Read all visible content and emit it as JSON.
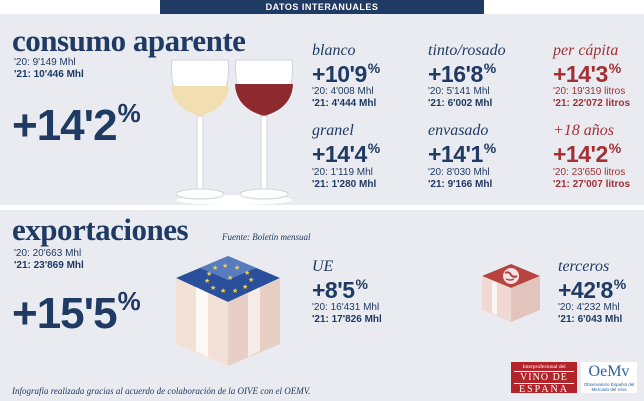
{
  "header": {
    "title": "DATOS INTERANUALES"
  },
  "consumo": {
    "title": "consumo aparente",
    "prev": "'20: 9'149 Mhl",
    "curr": "'21: 10'446 Mhl",
    "pct_main": "+14'2",
    "pct_sup": "%",
    "items": [
      {
        "label": "blanco",
        "pct": "+10'9",
        "sup": "%",
        "prev": "'20: 4'008 Mhl",
        "curr": "'21: 4'444 Mhl"
      },
      {
        "label": "tinto/rosado",
        "pct": "+16'8",
        "sup": "%",
        "prev": "'20: 5'141 Mhl",
        "curr": "'21: 6'002 Mhl"
      },
      {
        "label": "per cápita",
        "pct": "+14'3",
        "sup": "%",
        "prev": "'20: 19'319 litros",
        "curr": "'21: 22'072 litros"
      },
      {
        "label": "granel",
        "pct": "+14'4",
        "sup": "%",
        "prev": "'20: 1'119 Mhl",
        "curr": "'21: 1'280 Mhl"
      },
      {
        "label": "envasado",
        "pct": "+14'1",
        "sup": "%",
        "prev": "'20: 8'030 Mhl",
        "curr": "'21: 9'166 Mhl"
      },
      {
        "label": "+18 años",
        "pct": "+14'2",
        "sup": "%",
        "prev": "'20: 23'650 litros",
        "curr": "'21: 27'007 litros"
      }
    ]
  },
  "export": {
    "title": "exportaciones",
    "source": "Fuente: Boletín mensual",
    "prev": "'20: 20'663 Mhl",
    "curr": "'21: 23'869 Mhl",
    "pct_main": "+15'5",
    "pct_sup": "%",
    "items": [
      {
        "label": "UE",
        "pct": "+8'5",
        "sup": "%",
        "prev": "'20: 16'431 Mhl",
        "curr": "'21: 17'826 Mhl"
      },
      {
        "label": "terceros",
        "pct": "+42'8",
        "sup": "%",
        "prev": "'20: 4'232 Mhl",
        "curr": "'21: 6'043 Mhl"
      }
    ]
  },
  "footer": {
    "note": "Infografía realizada gracias al acuerdo de colaboración de la OIVE con el OEMV.",
    "logo1_line1": "Interprofesional del",
    "logo1_line2": "VINO DE",
    "logo1_line3": "ESPAÑA",
    "logo2_main": "OeMv",
    "logo2_sub": "Observatorio Español del Mercado del Vino"
  },
  "colors": {
    "navy": "#1f3a63",
    "red": "#a33034",
    "bg": "#e9ebf0"
  },
  "icons": [
    "wine-glasses-icon",
    "eu-flag-box-icon",
    "world-box-icon"
  ]
}
